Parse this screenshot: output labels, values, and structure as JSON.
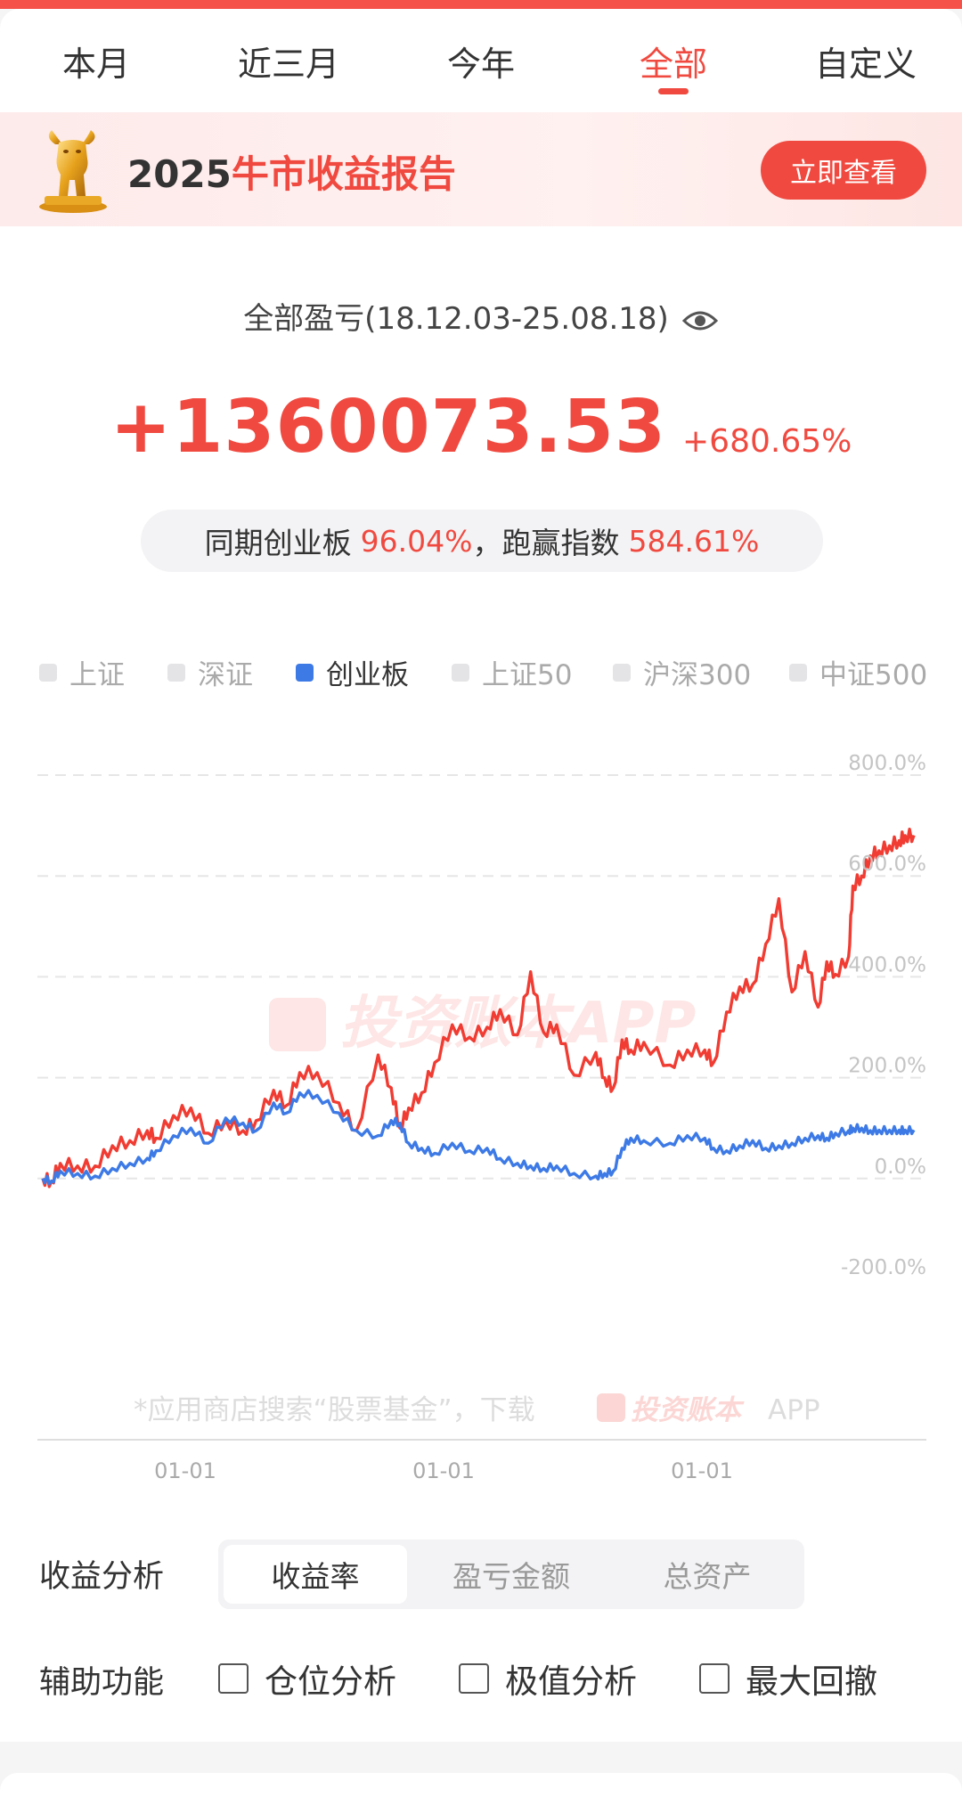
{
  "tabs": [
    {
      "label": "本月"
    },
    {
      "label": "近三月"
    },
    {
      "label": "今年"
    },
    {
      "label": "全部"
    },
    {
      "label": "自定义"
    }
  ],
  "active_tab": "全部",
  "banner": {
    "year": "2025",
    "title": "牛市收益报告",
    "button": "立即查看"
  },
  "summary": {
    "title": "全部盈亏(18.12.03-25.08.18)",
    "amount": "+1360073.53",
    "percent": "+680.65%",
    "compare_prefix": "同期创业板",
    "compare_value": "96.04%",
    "compare_sep": "，",
    "beat_prefix": "跑赢指数",
    "beat_value": "584.61%"
  },
  "legend": [
    {
      "label": "上证",
      "active": false
    },
    {
      "label": "深证",
      "active": false
    },
    {
      "label": "创业板",
      "active": true
    },
    {
      "label": "上证50",
      "active": false
    },
    {
      "label": "沪深300",
      "active": false
    },
    {
      "label": "中证500",
      "active": false
    }
  ],
  "chart_data": {
    "type": "line",
    "x_start": "2018-12-03",
    "x_end": "2025-08-18",
    "x_tick_labels": [
      "01-01",
      "01-01",
      "01-01"
    ],
    "y_ticks": [
      "800.0%",
      "600.0%",
      "400.0%",
      "200.0%",
      "0.0%",
      "-200.0%"
    ],
    "ylim": [
      -200,
      800
    ],
    "watermark": "投资账本APP",
    "footer_note": "*应用商店搜索“股票基金”，下载",
    "footer_brand": "投资账本",
    "footer_app": "APP",
    "series": [
      {
        "color": "#f03c32",
        "x": [
          0.0,
          0.01,
          0.02,
          0.04,
          0.06,
          0.08,
          0.1,
          0.12,
          0.13,
          0.15,
          0.17,
          0.19,
          0.21,
          0.23,
          0.245,
          0.265,
          0.28,
          0.295,
          0.315,
          0.34,
          0.36,
          0.385,
          0.4,
          0.41,
          0.42,
          0.435,
          0.45,
          0.47,
          0.49,
          0.51,
          0.525,
          0.545,
          0.56,
          0.575,
          0.59,
          0.61,
          0.635,
          0.645,
          0.655,
          0.665,
          0.675,
          0.69,
          0.72,
          0.74,
          0.76,
          0.77,
          0.785,
          0.8,
          0.815,
          0.83,
          0.845,
          0.86,
          0.875,
          0.89,
          0.9,
          0.91,
          0.925,
          0.93,
          0.94,
          0.95,
          0.96,
          0.972,
          0.983,
          0.99,
          1.0
        ],
        "y": [
          0,
          -5,
          30,
          25,
          25,
          65,
          75,
          95,
          80,
          125,
          140,
          90,
          115,
          95,
          115,
          175,
          145,
          210,
          210,
          150,
          95,
          245,
          180,
          100,
          140,
          170,
          230,
          305,
          280,
          300,
          335,
          285,
          410,
          290,
          305,
          205,
          250,
          200,
          180,
          275,
          255,
          270,
          225,
          255,
          255,
          230,
          330,
          380,
          385,
          465,
          555,
          370,
          450,
          340,
          430,
          405,
          440,
          580,
          600,
          640,
          650,
          660,
          670,
          680,
          680.65
        ]
      },
      {
        "color": "#3d7ae6",
        "x": [
          0.0,
          0.01,
          0.02,
          0.04,
          0.06,
          0.08,
          0.1,
          0.12,
          0.13,
          0.15,
          0.17,
          0.19,
          0.21,
          0.23,
          0.245,
          0.265,
          0.28,
          0.295,
          0.315,
          0.34,
          0.36,
          0.385,
          0.4,
          0.41,
          0.42,
          0.435,
          0.45,
          0.47,
          0.49,
          0.51,
          0.525,
          0.545,
          0.56,
          0.575,
          0.59,
          0.61,
          0.635,
          0.645,
          0.655,
          0.665,
          0.675,
          0.69,
          0.72,
          0.74,
          0.76,
          0.77,
          0.785,
          0.8,
          0.815,
          0.83,
          0.845,
          0.86,
          0.875,
          0.89,
          0.9,
          0.91,
          0.925,
          0.93,
          0.94,
          0.95,
          0.96,
          0.972,
          0.983,
          0.99,
          1.0
        ],
        "y": [
          0,
          -5,
          15,
          10,
          5,
          20,
          30,
          40,
          55,
          85,
          100,
          70,
          120,
          110,
          95,
          150,
          130,
          170,
          165,
          130,
          95,
          85,
          115,
          110,
          70,
          60,
          50,
          70,
          55,
          60,
          40,
          30,
          25,
          20,
          25,
          10,
          5,
          10,
          15,
          60,
          80,
          75,
          70,
          85,
          80,
          60,
          55,
          65,
          75,
          60,
          65,
          70,
          80,
          85,
          80,
          90,
          95,
          100,
          100,
          95,
          96,
          96,
          96,
          96,
          96.04
        ]
      }
    ]
  },
  "analysis": {
    "label": "收益分析",
    "options": [
      {
        "label": "收益率",
        "selected": true
      },
      {
        "label": "盈亏金额",
        "selected": false
      },
      {
        "label": "总资产",
        "selected": false
      }
    ]
  },
  "aux": {
    "label": "辅助功能",
    "options": [
      {
        "label": "仓位分析"
      },
      {
        "label": "极值分析"
      },
      {
        "label": "最大回撤"
      }
    ]
  }
}
